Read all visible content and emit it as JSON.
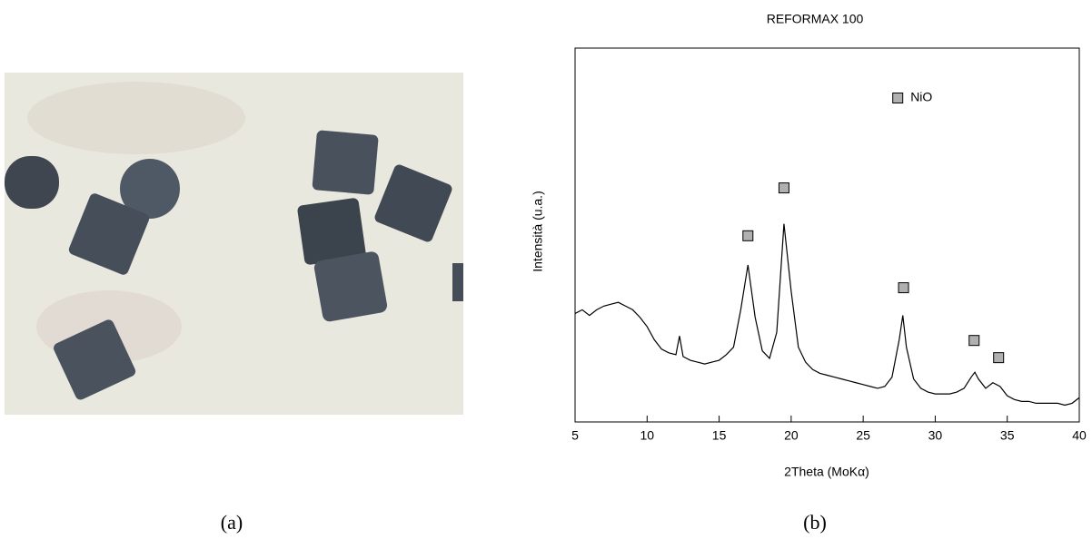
{
  "captions": [
    "(a)",
    "(b)"
  ],
  "chart_data": {
    "type": "line",
    "title": "REFORMAX 100",
    "xlabel": "2Theta (MoKα)",
    "ylabel": "Intensità (u.a.)",
    "xlim": [
      5,
      40
    ],
    "xticks": [
      5,
      10,
      15,
      20,
      25,
      30,
      35,
      40
    ],
    "ylim": [
      0,
      100
    ],
    "legend": "top",
    "series": [
      {
        "color": "#000000",
        "x": [
          5,
          5.5,
          6,
          6.5,
          7,
          7.5,
          8,
          8.5,
          9,
          9.5,
          10,
          10.5,
          11,
          11.5,
          12,
          12.25,
          12.5,
          13,
          13.5,
          14,
          14.5,
          15,
          15.5,
          16,
          16.5,
          17,
          17.5,
          18,
          18.5,
          19,
          19.5,
          20,
          20.5,
          21,
          21.5,
          22,
          22.5,
          23,
          23.5,
          24,
          24.5,
          25,
          25.5,
          26,
          26.5,
          27,
          27.5,
          27.75,
          28,
          28.5,
          29,
          29.5,
          30,
          30.5,
          31,
          31.5,
          32,
          32.5,
          32.75,
          33,
          33.5,
          34,
          34.5,
          35,
          35.5,
          36,
          36.5,
          37,
          37.5,
          38,
          38.5,
          39,
          39.5,
          40
        ],
        "values": [
          29,
          30,
          28.5,
          30,
          31,
          31.5,
          32,
          31,
          30,
          28,
          25.5,
          22,
          19.5,
          18.5,
          18,
          23,
          17.5,
          16.5,
          16,
          15.5,
          16,
          16.5,
          18,
          20,
          30,
          42,
          28,
          19,
          17,
          24,
          53,
          35,
          20,
          16,
          14,
          13,
          12.5,
          12,
          11.5,
          11,
          10.5,
          10,
          9.5,
          9,
          9.5,
          12,
          22,
          28.5,
          20,
          11.5,
          9,
          8,
          7.5,
          7.5,
          7.5,
          8,
          9,
          12,
          13.3,
          11.5,
          9,
          10.5,
          9.5,
          7,
          6,
          5.5,
          5.5,
          5,
          5,
          5,
          5,
          4.5,
          5,
          6.5
        ]
      },
      {
        "name": "NiO",
        "type": "scatter",
        "color": "#b0b0b0",
        "x": [
          17,
          19.5,
          27.8,
          32.7,
          34.4
        ],
        "values": [
          49.8,
          62.6,
          35.9,
          21.8,
          17.2
        ]
      }
    ]
  }
}
